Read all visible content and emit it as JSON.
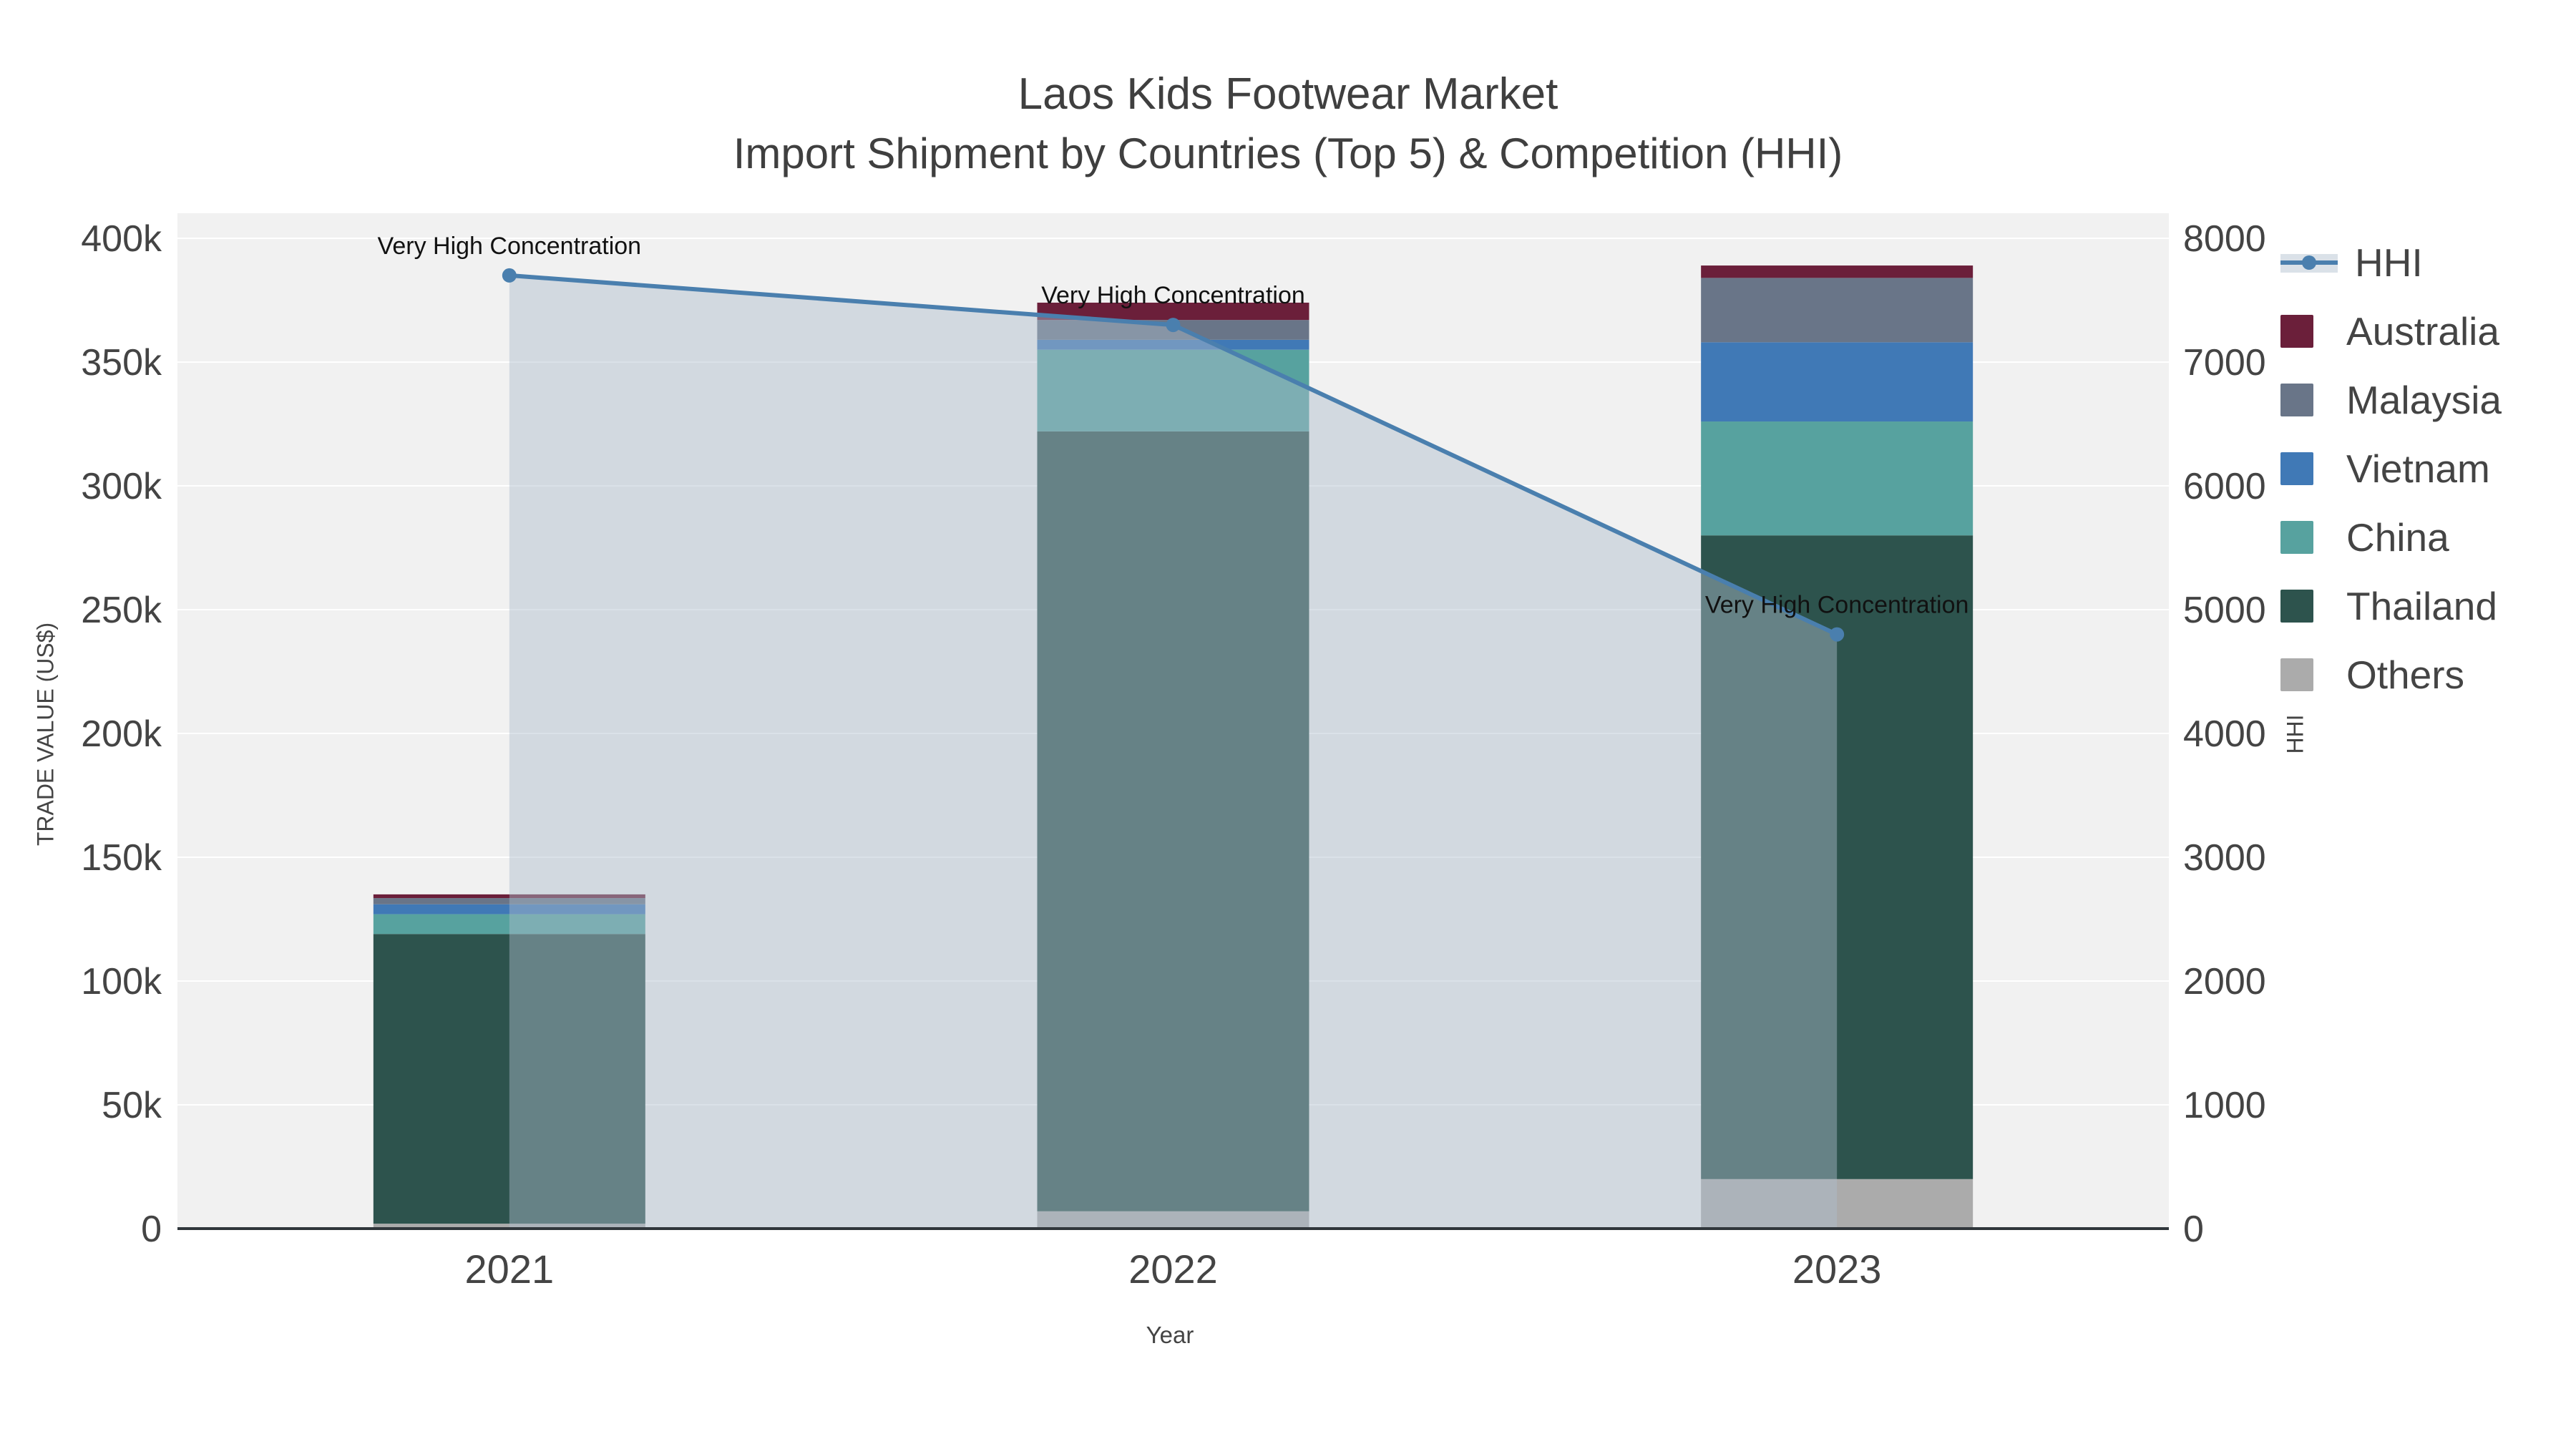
{
  "chart_data": {
    "type": "combo-stacked-bar-line",
    "title": "Laos Kids Footwear Market",
    "subtitle": "Import Shipment by Countries (Top 5) & Competition (HHI)",
    "xlabel": "Year",
    "ylabel_left": "TRADE VALUE (US$)",
    "ylabel_right": "HHI",
    "categories": [
      "2021",
      "2022",
      "2023"
    ],
    "bar_series": [
      {
        "name": "Others",
        "color": "#ababab",
        "values": [
          2000,
          7000,
          20000
        ]
      },
      {
        "name": "Thailand",
        "color": "#2d534d",
        "values": [
          117000,
          315000,
          260000
        ]
      },
      {
        "name": "China",
        "color": "#57a29f",
        "values": [
          8000,
          33000,
          46000
        ]
      },
      {
        "name": "Vietnam",
        "color": "#4079b6",
        "values": [
          4000,
          4000,
          32000
        ]
      },
      {
        "name": "Malaysia",
        "color": "#697588",
        "values": [
          2500,
          8000,
          26000
        ]
      },
      {
        "name": "Australia",
        "color": "#6b1f3a",
        "values": [
          1500,
          7000,
          5000
        ]
      }
    ],
    "line_series": {
      "name": "HHI",
      "color": "#4a7fae",
      "area_fill": "rgba(174,189,205,0.45)",
      "values": [
        7700,
        7300,
        4800
      ]
    },
    "annotations": [
      "Very High Concentration",
      "Very High Concentration",
      "Very High Concentration"
    ],
    "y_left": {
      "min": 0,
      "max": 400000,
      "tick_step": 50000,
      "ticks": [
        "0",
        "50k",
        "100k",
        "150k",
        "200k",
        "250k",
        "300k",
        "350k",
        "400k"
      ]
    },
    "y_right": {
      "min": 0,
      "max": 8000,
      "tick_step": 1000,
      "ticks": [
        "0",
        "1000",
        "2000",
        "3000",
        "4000",
        "5000",
        "6000",
        "7000",
        "8000"
      ]
    },
    "legend": [
      "HHI",
      "Australia",
      "Malaysia",
      "Vietnam",
      "China",
      "Thailand",
      "Others"
    ],
    "plot_background": "#f1f1f1",
    "grid_color": "#ffffff",
    "axis_line_color": "#30363b",
    "text_color": "#444444",
    "annotation_color": "#111111"
  }
}
